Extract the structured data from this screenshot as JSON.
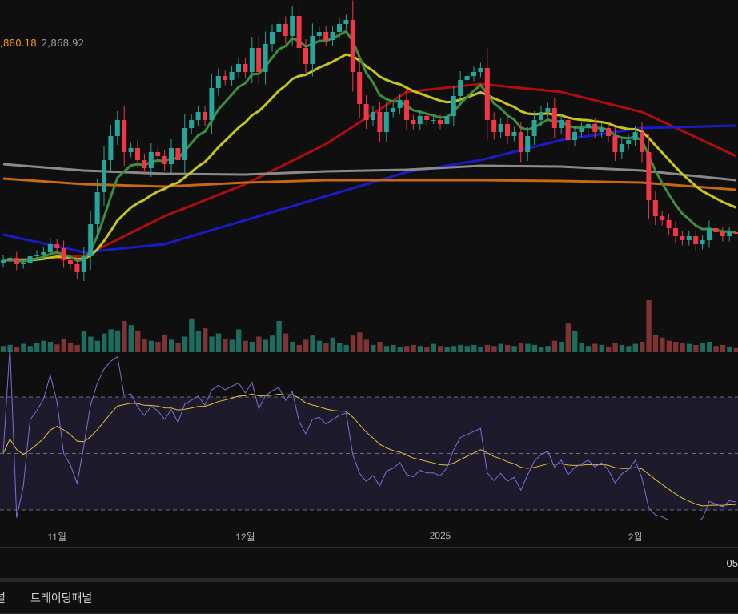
{
  "legend": {
    "value_a": ",880.18",
    "value_b": "2,868.92"
  },
  "time_axis": {
    "ticks": [
      {
        "label": "11월",
        "index": 8
      },
      {
        "label": "12월",
        "index": 36
      },
      {
        "label": "2025",
        "index": 65
      },
      {
        "label": "2월",
        "index": 94
      }
    ],
    "right_label": "05"
  },
  "tabs": {
    "prev_partial": "널",
    "trading_panel": "트레이딩패널"
  },
  "colors": {
    "up": "#26a69a",
    "down": "#f23645",
    "vol_up": "#1e6b5f",
    "vol_down": "#7e3434",
    "ma_short": "#3e8e3e",
    "ma_mid": "#c7c41a",
    "ma_50": "#b00d0d",
    "ma_100": "#1a1ac8",
    "ma_200": "#8a8a8a",
    "ma_long": "#c8680f",
    "rsi": "#7e6fd8",
    "rsi_signal": "#e0c33a",
    "rsi_band": "#1d1a2b"
  },
  "chart_data": {
    "type": "candlestick",
    "title": "",
    "closes": [
      2745,
      2754,
      2730,
      2736,
      2760,
      2766,
      2775,
      2805,
      2790,
      2745,
      2730,
      2700,
      2760,
      2880,
      3000,
      3120,
      3210,
      3270,
      3150,
      3165,
      3120,
      3090,
      3150,
      3135,
      3105,
      3165,
      3120,
      3240,
      3270,
      3300,
      3270,
      3390,
      3435,
      3420,
      3450,
      3480,
      3450,
      3540,
      3450,
      3555,
      3600,
      3630,
      3585,
      3660,
      3540,
      3480,
      3585,
      3600,
      3570,
      3600,
      3630,
      3645,
      3450,
      3330,
      3270,
      3300,
      3225,
      3300,
      3315,
      3345,
      3270,
      3255,
      3285,
      3270,
      3270,
      3255,
      3285,
      3360,
      3420,
      3435,
      3450,
      3465,
      3270,
      3225,
      3255,
      3210,
      3225,
      3150,
      3210,
      3270,
      3300,
      3315,
      3240,
      3270,
      3195,
      3225,
      3240,
      3255,
      3225,
      3240,
      3210,
      3150,
      3180,
      3195,
      3225,
      3150,
      2970,
      2910,
      2895,
      2865,
      2835,
      2820,
      2835,
      2805,
      2820,
      2865,
      2850,
      2835,
      2850,
      2844
    ],
    "volumes": [
      12,
      14,
      10,
      16,
      12,
      18,
      22,
      20,
      15,
      26,
      18,
      14,
      40,
      30,
      22,
      36,
      44,
      42,
      60,
      52,
      40,
      26,
      22,
      20,
      34,
      24,
      18,
      30,
      65,
      40,
      46,
      30,
      36,
      26,
      24,
      44,
      22,
      20,
      30,
      24,
      32,
      60,
      36,
      20,
      14,
      24,
      32,
      22,
      18,
      28,
      18,
      14,
      32,
      38,
      24,
      14,
      20,
      12,
      14,
      10,
      12,
      14,
      12,
      10,
      16,
      12,
      10,
      12,
      14,
      12,
      14,
      10,
      14,
      12,
      16,
      14,
      12,
      18,
      16,
      14,
      10,
      12,
      22,
      20,
      55,
      40,
      18,
      12,
      16,
      14,
      10,
      18,
      14,
      12,
      16,
      20,
      100,
      34,
      28,
      22,
      20,
      18,
      16,
      14,
      18,
      20,
      12,
      14,
      10,
      8
    ],
    "ma_lines": [
      {
        "name": "MA50",
        "points": [
          [
            0,
            2745
          ],
          [
            12,
            2760
          ],
          [
            24,
            2910
          ],
          [
            36,
            3030
          ],
          [
            48,
            3180
          ],
          [
            60,
            3375
          ],
          [
            71,
            3405
          ],
          [
            83,
            3375
          ],
          [
            95,
            3300
          ],
          [
            109,
            3135
          ]
        ]
      },
      {
        "name": "MA100",
        "points": [
          [
            0,
            2841
          ],
          [
            12,
            2775
          ],
          [
            24,
            2805
          ],
          [
            36,
            2895
          ],
          [
            48,
            2985
          ],
          [
            60,
            3075
          ],
          [
            71,
            3120
          ],
          [
            83,
            3195
          ],
          [
            95,
            3240
          ],
          [
            109,
            3249
          ]
        ]
      },
      {
        "name": "MA200",
        "points": [
          [
            0,
            3105
          ],
          [
            12,
            3081
          ],
          [
            24,
            3069
          ],
          [
            36,
            3066
          ],
          [
            48,
            3078
          ],
          [
            60,
            3084
          ],
          [
            71,
            3099
          ],
          [
            83,
            3096
          ],
          [
            95,
            3081
          ],
          [
            109,
            3045
          ]
        ]
      },
      {
        "name": "MA-long",
        "points": [
          [
            0,
            3051
          ],
          [
            12,
            3030
          ],
          [
            24,
            3021
          ],
          [
            36,
            3036
          ],
          [
            48,
            3045
          ],
          [
            60,
            3045
          ],
          [
            71,
            3045
          ],
          [
            83,
            3042
          ],
          [
            95,
            3036
          ],
          [
            109,
            3009
          ]
        ]
      }
    ],
    "price_range": [
      2400,
      3720
    ],
    "rsi_levels": [
      70,
      50,
      30
    ],
    "rsi_range": [
      12,
      88
    ]
  }
}
